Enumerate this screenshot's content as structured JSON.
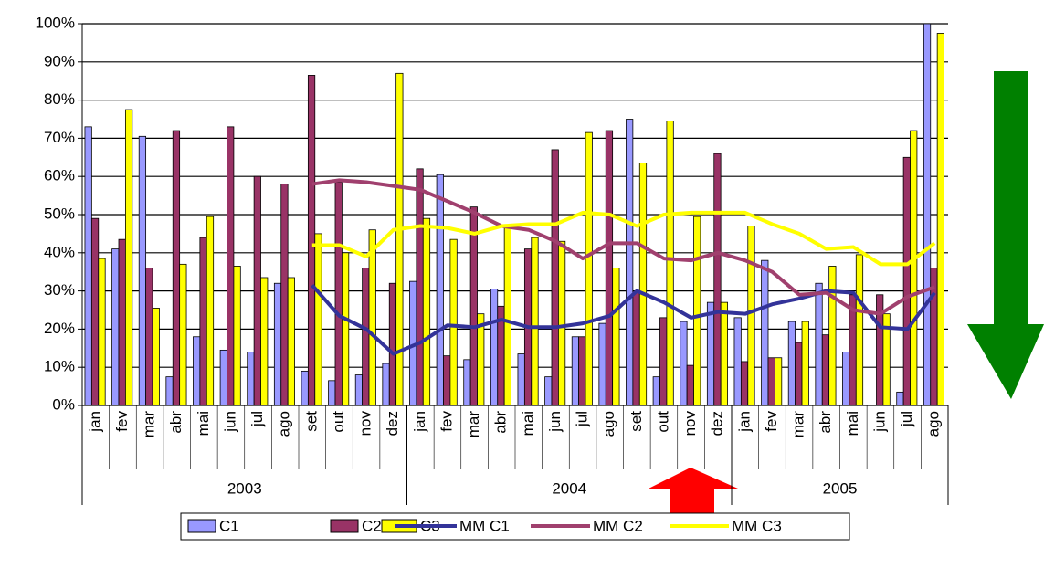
{
  "chart_data": {
    "type": "bar_line",
    "categories": [
      "jan",
      "fev",
      "mar",
      "abr",
      "mai",
      "jun",
      "jul",
      "ago",
      "set",
      "out",
      "nov",
      "dez",
      "jan",
      "fev",
      "mar",
      "abr",
      "mai",
      "jun",
      "jul",
      "ago",
      "set",
      "out",
      "nov",
      "dez",
      "jan",
      "fev",
      "mar",
      "abr",
      "mai",
      "jun",
      "jul",
      "ago"
    ],
    "groups": [
      {
        "label": "2003",
        "count": 12
      },
      {
        "label": "2004",
        "count": 12
      },
      {
        "label": "2005",
        "count": 8
      }
    ],
    "series": [
      {
        "name": "C1",
        "kind": "bar",
        "color": "#9999ff",
        "values": [
          73,
          41,
          70.5,
          7.5,
          18,
          14.5,
          14,
          32,
          9,
          6.5,
          8,
          11,
          32.5,
          60.5,
          12,
          30.5,
          13.5,
          7.5,
          18,
          21.5,
          75,
          7.5,
          22,
          27,
          23,
          38,
          22,
          32,
          14,
          0,
          3.5,
          100
        ]
      },
      {
        "name": "C2",
        "kind": "bar",
        "color": "#993366",
        "values": [
          49,
          43.5,
          36,
          72,
          44,
          73,
          60,
          58,
          86.5,
          58.5,
          36,
          32,
          62,
          13,
          52,
          26,
          41,
          67,
          18,
          72,
          30,
          23,
          10.5,
          66,
          11.5,
          12.5,
          16.5,
          18.5,
          29,
          29,
          65,
          36
        ]
      },
      {
        "name": "C3",
        "kind": "bar",
        "color": "#ffff00",
        "values": [
          38.5,
          77.5,
          25.5,
          37,
          49.5,
          36.5,
          33.5,
          33.5,
          45,
          40,
          46,
          87,
          49,
          43.5,
          24,
          47,
          44,
          43,
          71.5,
          36,
          63.5,
          74.5,
          49.5,
          27,
          47,
          12.5,
          22,
          36.5,
          39.5,
          24,
          72,
          97.5
        ]
      },
      {
        "name": "MM C1",
        "kind": "line",
        "color": "#333399",
        "values": [
          null,
          null,
          null,
          null,
          null,
          null,
          null,
          null,
          31.5,
          23.5,
          20,
          13.5,
          16.5,
          21,
          20.5,
          22.5,
          20.5,
          20.5,
          21.5,
          23.5,
          30,
          27,
          23,
          24.5,
          24,
          26.5,
          28,
          30,
          29.5,
          20.5,
          20,
          29.5
        ]
      },
      {
        "name": "MM C2",
        "kind": "line",
        "color": "#a0406e",
        "values": [
          null,
          null,
          null,
          null,
          null,
          null,
          null,
          null,
          58,
          59,
          58.5,
          57.5,
          56.5,
          53.5,
          50.5,
          47,
          46,
          43,
          38.5,
          42.5,
          42.5,
          38.5,
          38,
          40,
          38,
          35,
          29,
          29.5,
          25,
          24,
          28.5,
          31
        ]
      },
      {
        "name": "MM C3",
        "kind": "line",
        "color": "#ffff00",
        "values": [
          null,
          null,
          null,
          null,
          null,
          null,
          null,
          null,
          42,
          42,
          39,
          46,
          47,
          46.5,
          45,
          47,
          47.5,
          47.5,
          50.5,
          50,
          47,
          50,
          50.5,
          50.5,
          50.5,
          47.5,
          45,
          41,
          41.5,
          37,
          37,
          42.5
        ]
      }
    ],
    "ylim": [
      0,
      100
    ],
    "yticks": [
      {
        "value": 0,
        "label": "0%"
      },
      {
        "value": 10,
        "label": "10%"
      },
      {
        "value": 20,
        "label": "20%"
      },
      {
        "value": 30,
        "label": "30%"
      },
      {
        "value": 40,
        "label": "40%"
      },
      {
        "value": 50,
        "label": "50%"
      },
      {
        "value": 60,
        "label": "60%"
      },
      {
        "value": 70,
        "label": "70%"
      },
      {
        "value": 80,
        "label": "80%"
      },
      {
        "value": 90,
        "label": "90%"
      },
      {
        "value": 100,
        "label": "100%"
      }
    ],
    "grid": true,
    "legend": "bottom"
  }
}
